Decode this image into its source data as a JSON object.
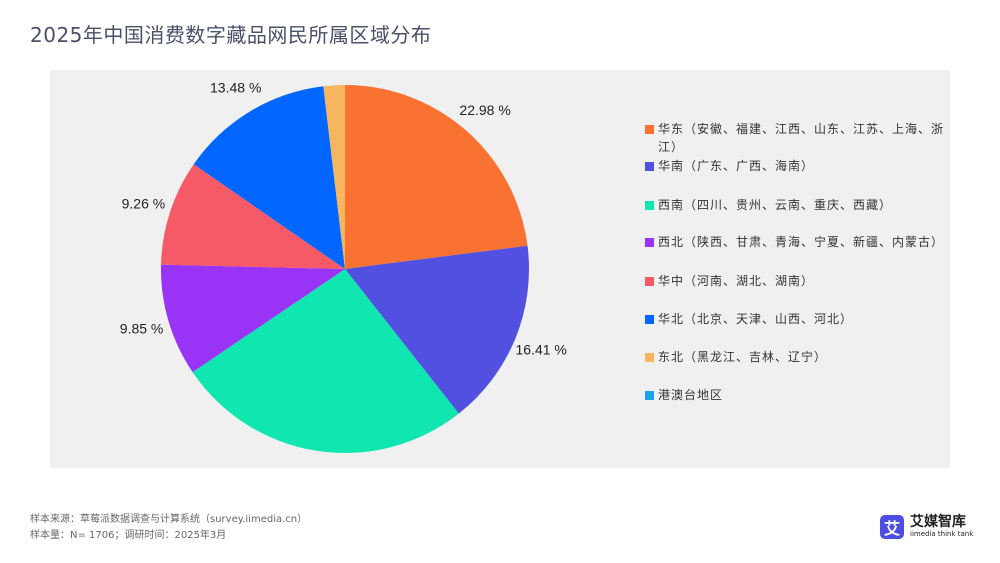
{
  "title": "2025年中国消费数字藏品网民所属区域分布",
  "footer": {
    "source": "样本来源：草莓派数据调查与计算系统（survey.iimedia.cn）",
    "sample": "样本量：N= 1706；调研时间：2025年3月"
  },
  "logo": {
    "mark": "艾",
    "name_cn": "艾媒智库",
    "name_en": "iimedia think tank"
  },
  "legend": [
    {
      "label": "华东（安徽、福建、江西、山东、江苏、上海、浙江）",
      "color": "#f97231"
    },
    {
      "label": "华南（广东、广西、海南）",
      "color": "#5250e0"
    },
    {
      "label": "西南（四川、贵州、云南、重庆、西藏）",
      "color": "#0fe6b0"
    },
    {
      "label": "西北（陕西、甘肃、青海、宁夏、新疆、内蒙古）",
      "color": "#9933f5"
    },
    {
      "label": "华中（河南、湖北、湖南）",
      "color": "#f55a66"
    },
    {
      "label": "华北（北京、天津、山西、河北）",
      "color": "#0066ff"
    },
    {
      "label": "东北（黑龙江、吉林、辽宁）",
      "color": "#f7b55e"
    },
    {
      "label": "港澳台地区",
      "color": "#1aa3e8"
    }
  ],
  "chart_data": {
    "type": "pie",
    "title": "2025年中国消费数字藏品网民所属区域分布",
    "categories": [
      "华东",
      "华南",
      "西南",
      "西北",
      "华中",
      "华北",
      "东北",
      "港澳台地区"
    ],
    "values": [
      22.98,
      16.41,
      26.14,
      9.85,
      9.26,
      13.48,
      1.88,
      0.0
    ],
    "labels": [
      "22.98 %",
      "16.41 %",
      "26.14 %",
      "9.85 %",
      "9.26 %",
      "13.48 %",
      "1.88 %",
      "0.00 %"
    ],
    "colors": [
      "#f97231",
      "#5250e0",
      "#0fe6b0",
      "#9933f5",
      "#f55a66",
      "#0066ff",
      "#f7b55e",
      "#1aa3e8"
    ],
    "start_angle": "12 o'clock, clockwise",
    "unit": "%",
    "legend_position": "right"
  }
}
